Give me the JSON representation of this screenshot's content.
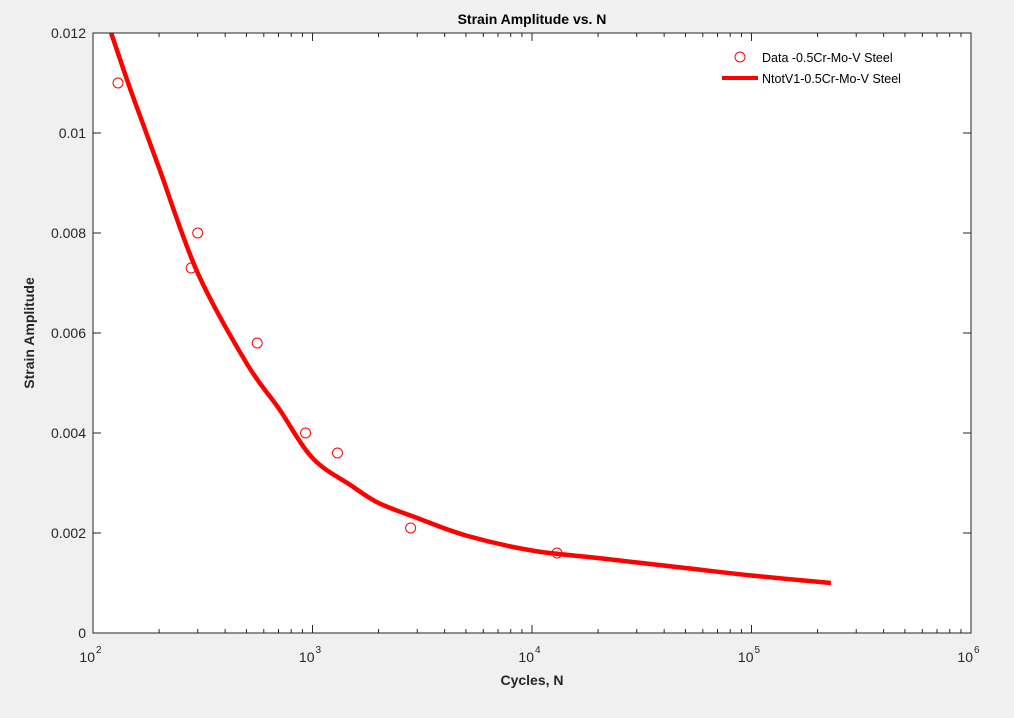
{
  "chart_data": {
    "type": "scatter",
    "title": "Strain Amplitude vs. N",
    "xlabel": "Cycles, N",
    "ylabel": "Strain Amplitude",
    "xscale": "log",
    "xlim": [
      100,
      1000000
    ],
    "ylim": [
      0,
      0.012
    ],
    "x_ticks": [
      {
        "value": 100,
        "base": "10",
        "exp": "2"
      },
      {
        "value": 1000,
        "base": "10",
        "exp": "3"
      },
      {
        "value": 10000,
        "base": "10",
        "exp": "4"
      },
      {
        "value": 100000,
        "base": "10",
        "exp": "5"
      },
      {
        "value": 1000000,
        "base": "10",
        "exp": "6"
      }
    ],
    "y_ticks": [
      {
        "value": 0,
        "label": "0"
      },
      {
        "value": 0.002,
        "label": "0.002"
      },
      {
        "value": 0.004,
        "label": "0.004"
      },
      {
        "value": 0.006,
        "label": "0.006"
      },
      {
        "value": 0.008,
        "label": "0.008"
      },
      {
        "value": 0.01,
        "label": "0.01"
      },
      {
        "value": 0.012,
        "label": "0.012"
      }
    ],
    "grid": false,
    "legend_position": "top-right",
    "series": [
      {
        "name": "Data -0.5Cr-Mo-V Steel",
        "kind": "markers",
        "marker": "circle",
        "color": "#ff0000",
        "points": [
          {
            "x": 130,
            "y": 0.011
          },
          {
            "x": 280,
            "y": 0.0073
          },
          {
            "x": 300,
            "y": 0.008
          },
          {
            "x": 560,
            "y": 0.0058
          },
          {
            "x": 930,
            "y": 0.004
          },
          {
            "x": 1300,
            "y": 0.0036
          },
          {
            "x": 2800,
            "y": 0.0021
          },
          {
            "x": 13000,
            "y": 0.0016
          }
        ]
      },
      {
        "name": "NtotV1-0.5Cr-Mo-V Steel",
        "kind": "line",
        "color": "#ff0000",
        "points": [
          {
            "x": 121,
            "y": 0.012
          },
          {
            "x": 150,
            "y": 0.0108
          },
          {
            "x": 200,
            "y": 0.0093
          },
          {
            "x": 300,
            "y": 0.0072
          },
          {
            "x": 500,
            "y": 0.0054
          },
          {
            "x": 700,
            "y": 0.0045
          },
          {
            "x": 1000,
            "y": 0.0035
          },
          {
            "x": 1500,
            "y": 0.00295
          },
          {
            "x": 2000,
            "y": 0.0026
          },
          {
            "x": 3000,
            "y": 0.0023
          },
          {
            "x": 5000,
            "y": 0.00195
          },
          {
            "x": 10000,
            "y": 0.00165
          },
          {
            "x": 20000,
            "y": 0.0015
          },
          {
            "x": 50000,
            "y": 0.0013
          },
          {
            "x": 100000,
            "y": 0.00115
          },
          {
            "x": 230000,
            "y": 0.001
          }
        ]
      }
    ]
  }
}
